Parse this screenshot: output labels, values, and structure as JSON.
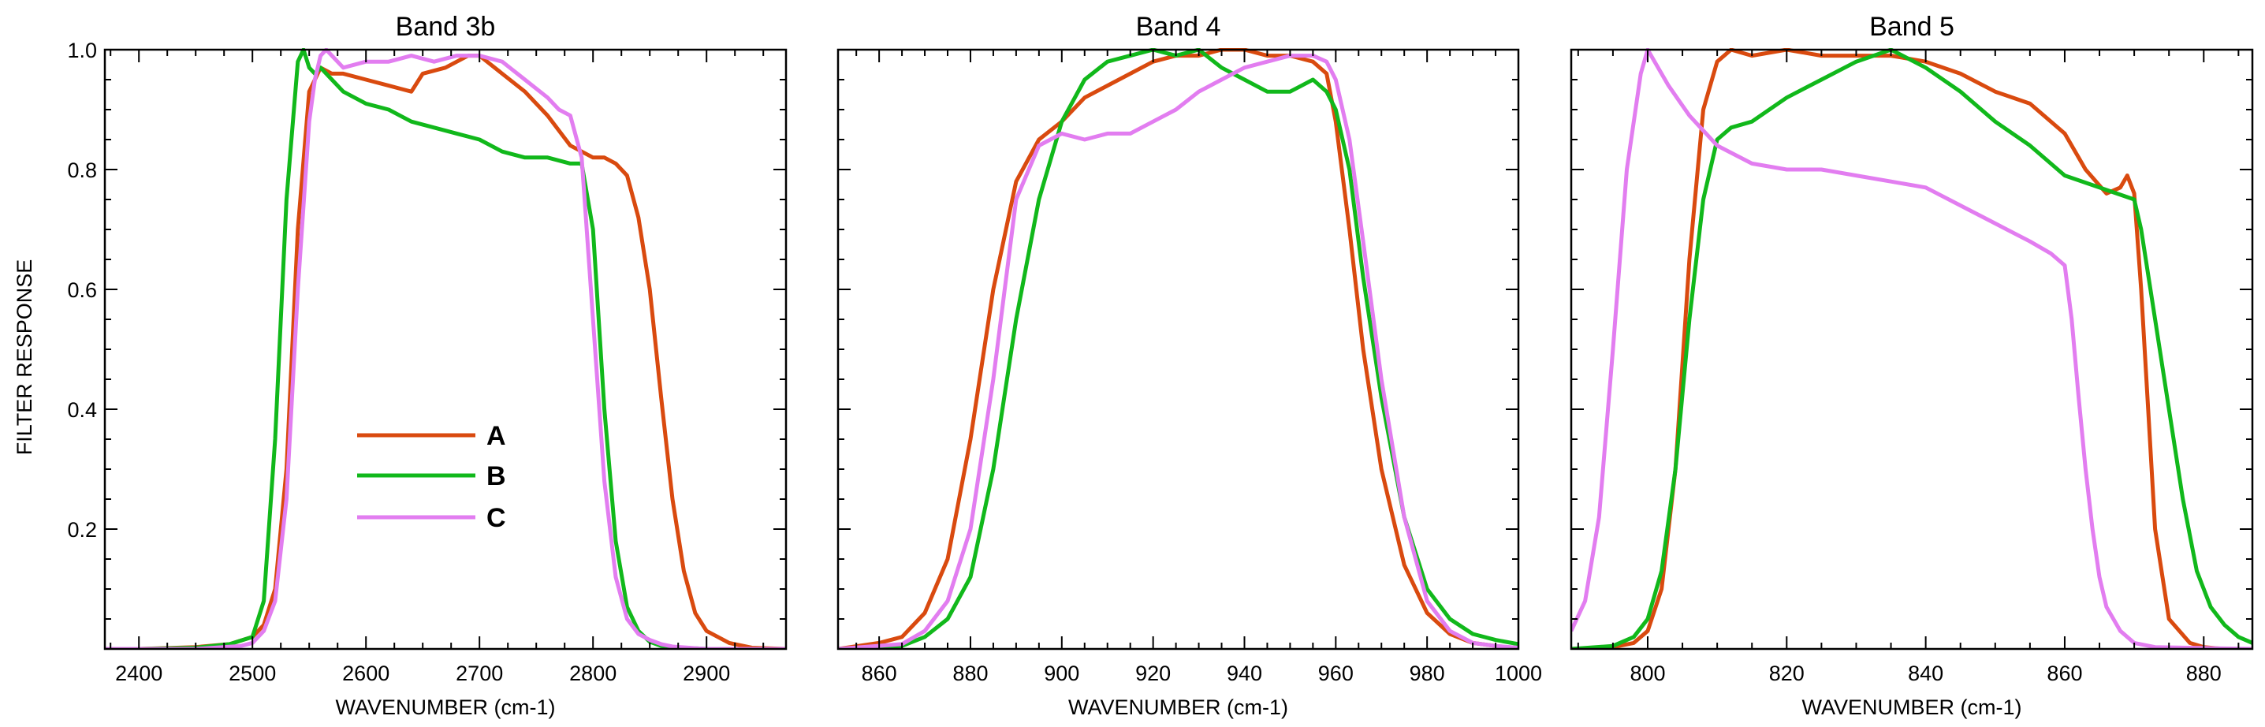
{
  "figure": {
    "ylabel": "FILTER RESPONSE"
  },
  "colors": {
    "A": "#d94a0f",
    "B": "#11b81b",
    "C": "#e27df0"
  },
  "chart_data": [
    {
      "type": "line",
      "title": "Band 3b",
      "xlabel": "WAVENUMBER (cm-1)",
      "ylabel": "FILTER RESPONSE",
      "xlim": [
        2370,
        2970
      ],
      "ylim": [
        0,
        1.0
      ],
      "xticks": [
        2400,
        2500,
        2600,
        2700,
        2800,
        2900
      ],
      "xtick_labels": [
        "2400",
        "2500",
        "2600",
        "2700",
        "2800",
        "2900"
      ],
      "yticks": [
        0.2,
        0.4,
        0.6,
        0.8,
        1.0
      ],
      "ytick_labels": [
        "0.2",
        "0.4",
        "0.6",
        "0.8",
        "1.0"
      ],
      "legend": {
        "position": "lower-left",
        "entries": [
          "A",
          "B",
          "C"
        ]
      },
      "series": [
        {
          "name": "A",
          "x": [
            2370,
            2400,
            2450,
            2480,
            2500,
            2510,
            2520,
            2530,
            2540,
            2550,
            2560,
            2570,
            2580,
            2600,
            2620,
            2640,
            2650,
            2670,
            2690,
            2700,
            2720,
            2740,
            2760,
            2780,
            2790,
            2800,
            2810,
            2820,
            2830,
            2840,
            2850,
            2860,
            2870,
            2880,
            2890,
            2900,
            2920,
            2940,
            2970
          ],
          "y": [
            0.0,
            0.0,
            0.003,
            0.008,
            0.02,
            0.04,
            0.1,
            0.3,
            0.7,
            0.93,
            0.97,
            0.96,
            0.96,
            0.95,
            0.94,
            0.93,
            0.96,
            0.97,
            0.99,
            0.99,
            0.96,
            0.93,
            0.89,
            0.84,
            0.83,
            0.82,
            0.82,
            0.81,
            0.79,
            0.72,
            0.6,
            0.42,
            0.25,
            0.13,
            0.06,
            0.03,
            0.01,
            0.002,
            0.0
          ]
        },
        {
          "name": "B",
          "x": [
            2370,
            2400,
            2450,
            2480,
            2500,
            2510,
            2520,
            2530,
            2540,
            2545,
            2550,
            2555,
            2560,
            2570,
            2580,
            2590,
            2600,
            2620,
            2640,
            2660,
            2680,
            2700,
            2720,
            2740,
            2760,
            2780,
            2790,
            2800,
            2810,
            2820,
            2830,
            2840,
            2850,
            2860,
            2880,
            2900,
            2920,
            2970
          ],
          "y": [
            0.0,
            0.0,
            0.002,
            0.008,
            0.02,
            0.08,
            0.35,
            0.75,
            0.98,
            1.0,
            0.97,
            0.96,
            0.97,
            0.95,
            0.93,
            0.92,
            0.91,
            0.9,
            0.88,
            0.87,
            0.86,
            0.85,
            0.83,
            0.82,
            0.82,
            0.81,
            0.81,
            0.7,
            0.4,
            0.18,
            0.07,
            0.03,
            0.012,
            0.005,
            0.002,
            0.0,
            0.0,
            0.0
          ]
        },
        {
          "name": "C",
          "x": [
            2370,
            2450,
            2490,
            2500,
            2510,
            2520,
            2530,
            2540,
            2550,
            2555,
            2560,
            2565,
            2570,
            2580,
            2600,
            2620,
            2640,
            2660,
            2680,
            2700,
            2720,
            2740,
            2760,
            2770,
            2780,
            2790,
            2800,
            2810,
            2820,
            2830,
            2840,
            2850,
            2860,
            2870,
            2900,
            2940,
            2970
          ],
          "y": [
            0.0,
            0.0,
            0.005,
            0.01,
            0.03,
            0.08,
            0.25,
            0.6,
            0.88,
            0.95,
            0.99,
            1.0,
            0.99,
            0.97,
            0.98,
            0.98,
            0.99,
            0.98,
            0.99,
            0.99,
            0.98,
            0.95,
            0.92,
            0.9,
            0.89,
            0.82,
            0.55,
            0.28,
            0.12,
            0.05,
            0.025,
            0.015,
            0.008,
            0.004,
            0.0,
            0.0,
            0.0
          ]
        }
      ]
    },
    {
      "type": "line",
      "title": "Band 4",
      "xlabel": "WAVENUMBER (cm-1)",
      "ylabel": "",
      "xlim": [
        851,
        1000
      ],
      "ylim": [
        0,
        1.0
      ],
      "xticks": [
        860,
        880,
        900,
        920,
        940,
        960,
        980,
        1000
      ],
      "xtick_labels": [
        "860",
        "880",
        "900",
        "920",
        "940",
        "960",
        "980",
        "1000"
      ],
      "yticks": [
        0.2,
        0.4,
        0.6,
        0.8,
        1.0
      ],
      "ytick_labels": [],
      "series": [
        {
          "name": "A",
          "x": [
            851,
            860,
            865,
            870,
            875,
            880,
            885,
            890,
            895,
            900,
            905,
            910,
            915,
            920,
            925,
            930,
            935,
            940,
            945,
            950,
            955,
            958,
            960,
            963,
            966,
            970,
            975,
            980,
            985,
            990,
            995,
            1000
          ],
          "y": [
            0.0,
            0.01,
            0.02,
            0.06,
            0.15,
            0.35,
            0.6,
            0.78,
            0.85,
            0.88,
            0.92,
            0.94,
            0.96,
            0.98,
            0.99,
            0.99,
            1.0,
            1.0,
            0.99,
            0.99,
            0.98,
            0.96,
            0.88,
            0.7,
            0.5,
            0.3,
            0.14,
            0.06,
            0.025,
            0.01,
            0.005,
            0.0
          ]
        },
        {
          "name": "B",
          "x": [
            851,
            865,
            870,
            875,
            880,
            885,
            890,
            895,
            900,
            905,
            910,
            915,
            920,
            925,
            930,
            935,
            940,
            945,
            950,
            955,
            958,
            960,
            963,
            966,
            970,
            975,
            980,
            985,
            990,
            995,
            1000
          ],
          "y": [
            0.0,
            0.005,
            0.02,
            0.05,
            0.12,
            0.3,
            0.55,
            0.75,
            0.88,
            0.95,
            0.98,
            0.99,
            1.0,
            0.99,
            1.0,
            0.97,
            0.95,
            0.93,
            0.93,
            0.95,
            0.93,
            0.9,
            0.8,
            0.62,
            0.42,
            0.22,
            0.1,
            0.05,
            0.025,
            0.015,
            0.008
          ]
        },
        {
          "name": "C",
          "x": [
            851,
            865,
            870,
            875,
            880,
            885,
            890,
            895,
            900,
            905,
            910,
            915,
            920,
            925,
            930,
            935,
            940,
            945,
            950,
            955,
            958,
            960,
            963,
            966,
            970,
            975,
            980,
            985,
            990,
            995,
            1000
          ],
          "y": [
            0.0,
            0.008,
            0.03,
            0.08,
            0.2,
            0.45,
            0.75,
            0.84,
            0.86,
            0.85,
            0.86,
            0.86,
            0.88,
            0.9,
            0.93,
            0.95,
            0.97,
            0.98,
            0.99,
            0.99,
            0.98,
            0.95,
            0.85,
            0.68,
            0.45,
            0.22,
            0.08,
            0.03,
            0.01,
            0.005,
            0.002
          ]
        }
      ]
    },
    {
      "type": "line",
      "title": "Band 5",
      "xlabel": "WAVENUMBER (cm-1)",
      "ylabel": "",
      "xlim": [
        789,
        887
      ],
      "ylim": [
        0,
        1.0
      ],
      "xticks": [
        800,
        820,
        840,
        860,
        880
      ],
      "xtick_labels": [
        "800",
        "820",
        "840",
        "860",
        "880"
      ],
      "yticks": [
        0.2,
        0.4,
        0.6,
        0.8,
        1.0
      ],
      "ytick_labels": [],
      "series": [
        {
          "name": "A",
          "x": [
            789,
            795,
            798,
            800,
            802,
            804,
            806,
            808,
            810,
            812,
            815,
            820,
            825,
            830,
            835,
            840,
            845,
            850,
            855,
            860,
            863,
            866,
            868,
            869,
            870,
            871,
            872,
            873,
            875,
            878,
            880,
            883,
            887
          ],
          "y": [
            0.0,
            0.003,
            0.01,
            0.03,
            0.1,
            0.3,
            0.65,
            0.9,
            0.98,
            1.0,
            0.99,
            1.0,
            0.99,
            0.99,
            0.99,
            0.98,
            0.96,
            0.93,
            0.91,
            0.86,
            0.8,
            0.76,
            0.77,
            0.79,
            0.76,
            0.6,
            0.4,
            0.2,
            0.05,
            0.01,
            0.003,
            0.0,
            0.0
          ]
        },
        {
          "name": "B",
          "x": [
            789,
            795,
            798,
            800,
            802,
            804,
            806,
            808,
            810,
            812,
            815,
            820,
            825,
            830,
            835,
            840,
            845,
            850,
            855,
            860,
            865,
            870,
            871,
            873,
            875,
            877,
            879,
            881,
            883,
            885,
            887
          ],
          "y": [
            0.0,
            0.005,
            0.02,
            0.05,
            0.13,
            0.3,
            0.55,
            0.75,
            0.85,
            0.87,
            0.88,
            0.92,
            0.95,
            0.98,
            1.0,
            0.97,
            0.93,
            0.88,
            0.84,
            0.79,
            0.77,
            0.75,
            0.7,
            0.55,
            0.4,
            0.25,
            0.13,
            0.07,
            0.04,
            0.02,
            0.01
          ]
        },
        {
          "name": "C",
          "x": [
            789,
            791,
            793,
            795,
            797,
            799,
            800,
            801,
            803,
            806,
            810,
            815,
            820,
            825,
            830,
            835,
            840,
            845,
            850,
            855,
            858,
            860,
            861,
            862,
            863,
            864,
            865,
            866,
            868,
            870,
            873,
            887
          ],
          "y": [
            0.03,
            0.08,
            0.22,
            0.5,
            0.8,
            0.96,
            1.0,
            0.98,
            0.94,
            0.89,
            0.84,
            0.81,
            0.8,
            0.8,
            0.79,
            0.78,
            0.77,
            0.74,
            0.71,
            0.68,
            0.66,
            0.64,
            0.55,
            0.42,
            0.3,
            0.2,
            0.12,
            0.07,
            0.03,
            0.01,
            0.003,
            0.0
          ]
        }
      ]
    }
  ]
}
